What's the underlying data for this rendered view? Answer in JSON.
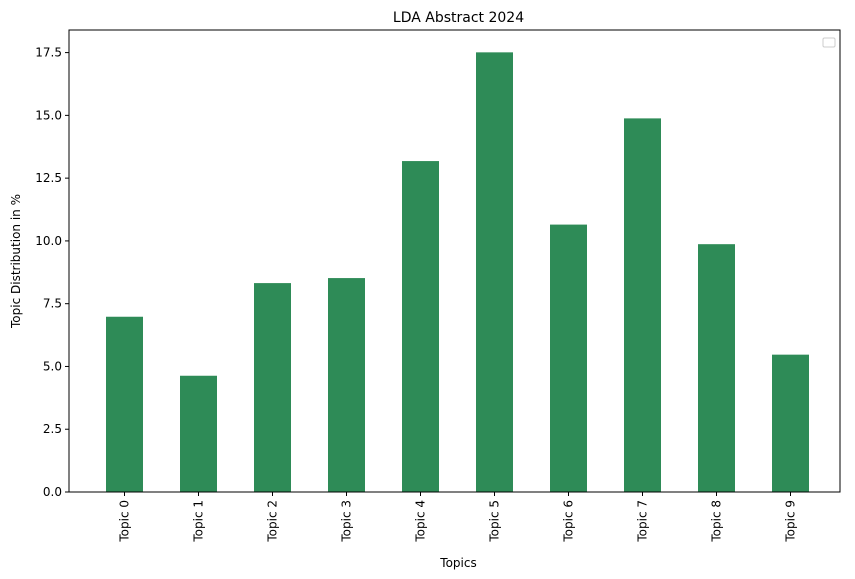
{
  "chart_data": {
    "type": "bar",
    "title": "LDA Abstract 2024",
    "xlabel": "Topics",
    "ylabel": "Topic Distribution in %",
    "categories": [
      "Topic 0",
      "Topic 1",
      "Topic 2",
      "Topic 3",
      "Topic 4",
      "Topic 5",
      "Topic 6",
      "Topic 7",
      "Topic 8",
      "Topic 9"
    ],
    "values": [
      6.98,
      4.63,
      8.32,
      8.52,
      13.18,
      17.51,
      10.65,
      14.88,
      9.87,
      5.47
    ],
    "ylim": [
      0,
      18.4
    ],
    "yticks": [
      "0.0",
      "2.5",
      "5.0",
      "7.5",
      "10.0",
      "12.5",
      "15.0",
      "17.5"
    ],
    "ytick_values": [
      0,
      2.5,
      5.0,
      7.5,
      10.0,
      12.5,
      15.0,
      17.5
    ],
    "bar_color": "#2e8b57",
    "grid": false,
    "legend": "upper right, empty"
  }
}
